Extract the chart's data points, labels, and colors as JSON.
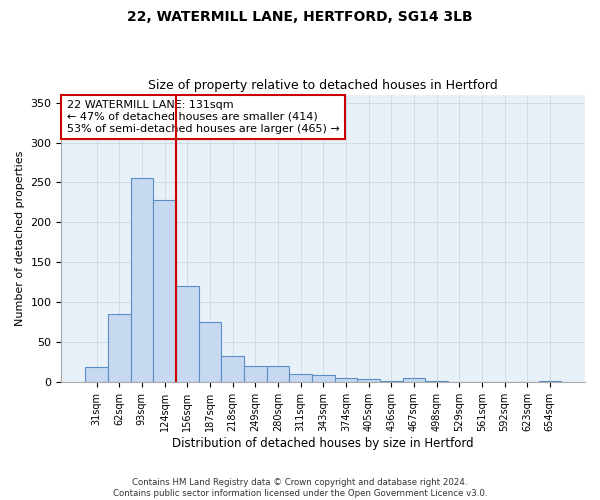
{
  "title1": "22, WATERMILL LANE, HERTFORD, SG14 3LB",
  "title2": "Size of property relative to detached houses in Hertford",
  "xlabel": "Distribution of detached houses by size in Hertford",
  "ylabel": "Number of detached properties",
  "bar_labels": [
    "31sqm",
    "62sqm",
    "93sqm",
    "124sqm",
    "156sqm",
    "187sqm",
    "218sqm",
    "249sqm",
    "280sqm",
    "311sqm",
    "343sqm",
    "374sqm",
    "405sqm",
    "436sqm",
    "467sqm",
    "498sqm",
    "529sqm",
    "561sqm",
    "592sqm",
    "623sqm",
    "654sqm"
  ],
  "bar_values": [
    19,
    86,
    255,
    228,
    121,
    75,
    33,
    20,
    20,
    11,
    9,
    5,
    4,
    2,
    5,
    2,
    1,
    1,
    0,
    0,
    2
  ],
  "bar_color": "#c6d9f0",
  "bar_edge_color": "#5b8ec4",
  "vline_x": 3.5,
  "vline_color": "#cc0000",
  "annotation_title": "22 WATERMILL LANE: 131sqm",
  "annotation_line1": "← 47% of detached houses are smaller (414)",
  "annotation_line2": "53% of semi-detached houses are larger (465) →",
  "annotation_box_color": "#cc0000",
  "ylim": [
    0,
    360
  ],
  "yticks": [
    0,
    50,
    100,
    150,
    200,
    250,
    300,
    350
  ],
  "footnote1": "Contains HM Land Registry data © Crown copyright and database right 2024.",
  "footnote2": "Contains public sector information licensed under the Open Government Licence v3.0.",
  "bg_color": "#ffffff",
  "grid_color": "#c8d4e0"
}
